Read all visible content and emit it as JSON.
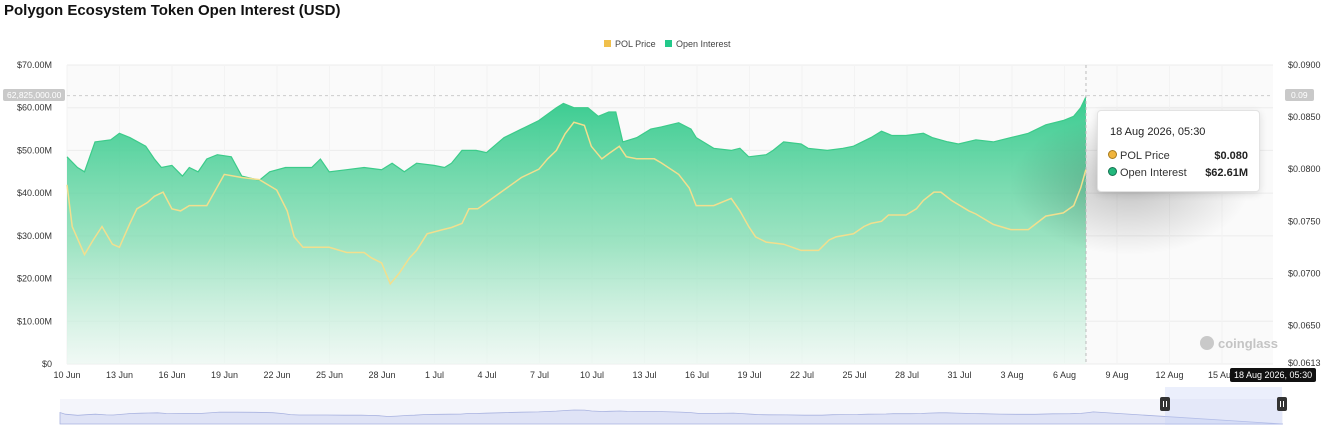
{
  "page": {
    "title": "Polygon Ecosystem Token Open Interest (USD)"
  },
  "legend": {
    "price_label": "POL Price",
    "oi_label": "Open Interest"
  },
  "colors": {
    "price": "#f0c04c",
    "oi": "#22c98a",
    "price_line": "#f2df8e",
    "oi_line": "#3ccb8a"
  },
  "tooltip": {
    "date": "18 Aug 2026, 05:30",
    "price_label": "POL Price",
    "price_value": "$0.080",
    "oi_label": "Open Interest",
    "oi_value": "$62.61M"
  },
  "crosshair": {
    "left_value": "62,825,000.00",
    "right_value": "0.09",
    "x_label": "18 Aug 2026, 05:30"
  },
  "watermark": "coinglass",
  "chart_data": {
    "type": "area",
    "title": "Polygon Ecosystem Token Open Interest (USD)",
    "x_ticks": [
      "10 Jun",
      "13 Jun",
      "16 Jun",
      "19 Jun",
      "22 Jun",
      "25 Jun",
      "28 Jun",
      "1 Jul",
      "4 Jul",
      "7 Jul",
      "10 Jul",
      "13 Jul",
      "16 Jul",
      "19 Jul",
      "22 Jul",
      "25 Jul",
      "28 Jul",
      "31 Jul",
      "3 Aug",
      "6 Aug",
      "9 Aug",
      "12 Aug",
      "15 Aug"
    ],
    "y_left": {
      "min": 0,
      "max": 70,
      "ticks": [
        0,
        10,
        20,
        30,
        40,
        50,
        60,
        70
      ],
      "tick_labels": [
        "$0",
        "$10.00M",
        "$20.00M",
        "$30.00M",
        "$40.00M",
        "$50.00M",
        "$60.00M",
        "$70.00M"
      ]
    },
    "y_right": {
      "min": 0.0613,
      "max": 0.09,
      "ticks": [
        0.0613,
        0.065,
        0.07,
        0.075,
        0.08,
        0.085,
        0.09
      ],
      "tick_labels": [
        "$0.0613",
        "$0.0650",
        "$0.0700",
        "$0.0750",
        "$0.0800",
        "$0.0850",
        "$0.0900"
      ]
    },
    "x_range": [
      0,
      69
    ],
    "series": [
      {
        "name": "Open Interest",
        "axis": "left",
        "points": [
          [
            0,
            48.5
          ],
          [
            0.6,
            46
          ],
          [
            1,
            45
          ],
          [
            1.6,
            52
          ],
          [
            2.5,
            52.5
          ],
          [
            3,
            54
          ],
          [
            3.6,
            53
          ],
          [
            4.5,
            51
          ],
          [
            5,
            48
          ],
          [
            5.4,
            46
          ],
          [
            6,
            46.5
          ],
          [
            6.6,
            44
          ],
          [
            7,
            46
          ],
          [
            7.5,
            45
          ],
          [
            8,
            48
          ],
          [
            8.6,
            49
          ],
          [
            9.4,
            48.5
          ],
          [
            10,
            44
          ],
          [
            11,
            43
          ],
          [
            11.6,
            45
          ],
          [
            12.5,
            46
          ],
          [
            13.3,
            46
          ],
          [
            14,
            46
          ],
          [
            14.5,
            48
          ],
          [
            15,
            45
          ],
          [
            16,
            45.5
          ],
          [
            17,
            46
          ],
          [
            18,
            45.5
          ],
          [
            18.6,
            47
          ],
          [
            19.3,
            45
          ],
          [
            20,
            47
          ],
          [
            21,
            46.5
          ],
          [
            21.6,
            46
          ],
          [
            22,
            47
          ],
          [
            22.6,
            50
          ],
          [
            23.4,
            50
          ],
          [
            24,
            49.5
          ],
          [
            25,
            53
          ],
          [
            26,
            55
          ],
          [
            27,
            57
          ],
          [
            28,
            60
          ],
          [
            28.4,
            61
          ],
          [
            29,
            60
          ],
          [
            29.8,
            60
          ],
          [
            30.4,
            58
          ],
          [
            31,
            59
          ],
          [
            31.4,
            59
          ],
          [
            31.8,
            52
          ],
          [
            32.6,
            53
          ],
          [
            33.4,
            55
          ],
          [
            34,
            55.5
          ],
          [
            35,
            56.5
          ],
          [
            35.7,
            55
          ],
          [
            36,
            53
          ],
          [
            37,
            50.5
          ],
          [
            38,
            50
          ],
          [
            38.5,
            50.5
          ],
          [
            39,
            48.5
          ],
          [
            40,
            49
          ],
          [
            40.4,
            50
          ],
          [
            41,
            52
          ],
          [
            42,
            51.5
          ],
          [
            42.4,
            50.5
          ],
          [
            43.5,
            50
          ],
          [
            44.4,
            50.5
          ],
          [
            45,
            51
          ],
          [
            46,
            53
          ],
          [
            46.6,
            54.5
          ],
          [
            47.2,
            53.5
          ],
          [
            48,
            53.5
          ],
          [
            49,
            54
          ],
          [
            49.5,
            53
          ],
          [
            50.4,
            52
          ],
          [
            51,
            51.5
          ],
          [
            52,
            52.5
          ],
          [
            53,
            52
          ],
          [
            54,
            53
          ],
          [
            55,
            54
          ],
          [
            56,
            56
          ],
          [
            57,
            57
          ],
          [
            57.6,
            58
          ],
          [
            58,
            60
          ],
          [
            58.3,
            62.6
          ]
        ]
      },
      {
        "name": "POL Price",
        "axis": "right",
        "points": [
          [
            0,
            0.0785
          ],
          [
            0.3,
            0.0745
          ],
          [
            1,
            0.0718
          ],
          [
            1.5,
            0.0732
          ],
          [
            2,
            0.0745
          ],
          [
            2.6,
            0.0728
          ],
          [
            3,
            0.0725
          ],
          [
            3.6,
            0.0748
          ],
          [
            4,
            0.0762
          ],
          [
            4.6,
            0.0768
          ],
          [
            5,
            0.0774
          ],
          [
            5.5,
            0.0778
          ],
          [
            6,
            0.0762
          ],
          [
            6.5,
            0.076
          ],
          [
            7,
            0.0765
          ],
          [
            8,
            0.0765
          ],
          [
            9,
            0.0795
          ],
          [
            10,
            0.0792
          ],
          [
            11,
            0.079
          ],
          [
            12,
            0.078
          ],
          [
            12.6,
            0.076
          ],
          [
            13,
            0.0735
          ],
          [
            13.5,
            0.0725
          ],
          [
            14,
            0.0725
          ],
          [
            15,
            0.0725
          ],
          [
            16,
            0.072
          ],
          [
            17,
            0.072
          ],
          [
            17.4,
            0.0715
          ],
          [
            18,
            0.071
          ],
          [
            18.5,
            0.069
          ],
          [
            19,
            0.07
          ],
          [
            19.6,
            0.0715
          ],
          [
            20,
            0.0722
          ],
          [
            20.6,
            0.0738
          ],
          [
            21.5,
            0.0742
          ],
          [
            22,
            0.0744
          ],
          [
            22.6,
            0.0748
          ],
          [
            23,
            0.0762
          ],
          [
            23.5,
            0.0762
          ],
          [
            24,
            0.0768
          ],
          [
            25,
            0.078
          ],
          [
            26,
            0.0792
          ],
          [
            27,
            0.08
          ],
          [
            27.5,
            0.081
          ],
          [
            28,
            0.0818
          ],
          [
            28.5,
            0.0834
          ],
          [
            29,
            0.0845
          ],
          [
            29.6,
            0.0842
          ],
          [
            30,
            0.0822
          ],
          [
            30.6,
            0.081
          ],
          [
            31,
            0.0815
          ],
          [
            31.6,
            0.0822
          ],
          [
            32,
            0.0812
          ],
          [
            32.6,
            0.081
          ],
          [
            33.6,
            0.081
          ],
          [
            34,
            0.0806
          ],
          [
            35,
            0.0795
          ],
          [
            35.6,
            0.0782
          ],
          [
            36,
            0.0765
          ],
          [
            37,
            0.0765
          ],
          [
            38,
            0.0772
          ],
          [
            38.5,
            0.076
          ],
          [
            39,
            0.0745
          ],
          [
            39.4,
            0.0735
          ],
          [
            40,
            0.073
          ],
          [
            41,
            0.0728
          ],
          [
            42,
            0.0722
          ],
          [
            43,
            0.0722
          ],
          [
            43.6,
            0.0732
          ],
          [
            44,
            0.0735
          ],
          [
            45,
            0.0738
          ],
          [
            45.6,
            0.0745
          ],
          [
            46,
            0.0748
          ],
          [
            46.6,
            0.075
          ],
          [
            47,
            0.0756
          ],
          [
            48,
            0.0756
          ],
          [
            48.6,
            0.0762
          ],
          [
            49,
            0.077
          ],
          [
            49.6,
            0.0778
          ],
          [
            50,
            0.0778
          ],
          [
            50.6,
            0.077
          ],
          [
            51.6,
            0.076
          ],
          [
            52,
            0.0757
          ],
          [
            53,
            0.0747
          ],
          [
            54,
            0.0742
          ],
          [
            55,
            0.0742
          ],
          [
            56,
            0.0755
          ],
          [
            57,
            0.0758
          ],
          [
            57.6,
            0.0765
          ],
          [
            58,
            0.0782
          ],
          [
            58.3,
            0.08
          ]
        ]
      }
    ],
    "legend_position": "top-center",
    "grid": true
  }
}
